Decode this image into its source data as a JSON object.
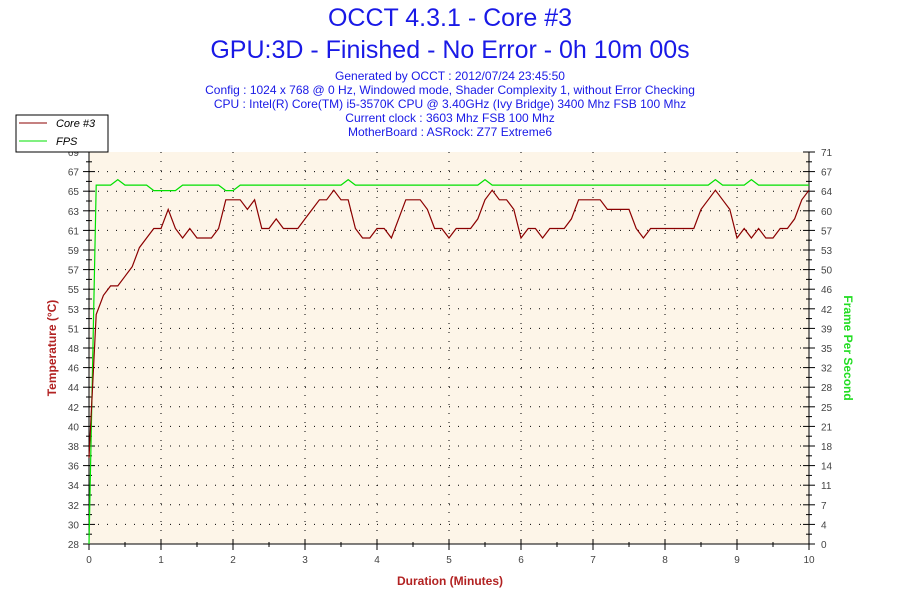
{
  "chart_data": {
    "type": "line",
    "title": "OCCT 4.3.1 - Core #3",
    "subtitle": "GPU:3D - Finished - No Error - 0h 10m 00s",
    "info_lines": [
      "Generated by OCCT : 2012/07/24 23:45:50",
      "Config : 1024 x 768 @ 0 Hz, Windowed mode, Shader Complexity 1, without Error Checking",
      "CPU : Intel(R) Core(TM) i5-3570K CPU @ 3.40GHz (Ivy Bridge) 3400 Mhz FSB 100 Mhz",
      "Current clock : 3603 Mhz FSB 100 Mhz",
      "MotherBoard : ASRock: Z77 Extreme6"
    ],
    "xlabel": "Duration (Minutes)",
    "ylabel": "Temperature (°C)",
    "y2label": "Frame Per Second",
    "xlim": [
      0,
      10
    ],
    "ylim": [
      28,
      69
    ],
    "y2lim": [
      0,
      71
    ],
    "x_ticks": [
      "0",
      "1",
      "2",
      "3",
      "4",
      "5",
      "6",
      "7",
      "8",
      "9",
      "10"
    ],
    "y_ticks": [
      "28",
      "30",
      "32",
      "34",
      "36",
      "38",
      "40",
      "42",
      "44",
      "46",
      "48",
      "51",
      "53",
      "55",
      "57",
      "59",
      "61",
      "63",
      "65",
      "67",
      "69"
    ],
    "y2_ticks": [
      "0",
      "4",
      "7",
      "11",
      "14",
      "18",
      "21",
      "25",
      "28",
      "32",
      "35",
      "39",
      "42",
      "46",
      "50",
      "53",
      "57",
      "60",
      "64",
      "67",
      "71"
    ],
    "grid": true,
    "legend_position": "top-left",
    "colors": {
      "temp": "#8b0000",
      "fps": "#00e000",
      "title": "#1919e6",
      "plot_bg": "#fdf5e8"
    },
    "series": [
      {
        "name": "Core #3",
        "axis": "left",
        "x_step": 0.1,
        "values": [
          37,
          52,
          54,
          55,
          55,
          56,
          57,
          59,
          60,
          61,
          61,
          63,
          61,
          60,
          61,
          60,
          60,
          60,
          61,
          64,
          64,
          64,
          63,
          64,
          61,
          61,
          62,
          61,
          61,
          61,
          62,
          63,
          64,
          64,
          65,
          64,
          64,
          61,
          60,
          60,
          61,
          61,
          60,
          62,
          64,
          64,
          64,
          63,
          61,
          61,
          60,
          61,
          61,
          61,
          62,
          64,
          65,
          64,
          64,
          63,
          60,
          61,
          61,
          60,
          61,
          61,
          61,
          62,
          64,
          64,
          64,
          64,
          63,
          63,
          63,
          63,
          61,
          60,
          61,
          61,
          61,
          61,
          61,
          61,
          61,
          63,
          64,
          65,
          64,
          63,
          60,
          61,
          60,
          61,
          60,
          60,
          61,
          61,
          62,
          64,
          65
        ]
      },
      {
        "name": "FPS",
        "axis": "right",
        "x_step": 0.1,
        "values": [
          0,
          65,
          65,
          65,
          66,
          65,
          65,
          65,
          65,
          64,
          64,
          64,
          64,
          65,
          65,
          65,
          65,
          65,
          65,
          64,
          64,
          65,
          65,
          65,
          65,
          65,
          65,
          65,
          65,
          65,
          65,
          65,
          65,
          65,
          65,
          65,
          66,
          65,
          65,
          65,
          65,
          65,
          65,
          65,
          65,
          65,
          65,
          65,
          65,
          65,
          65,
          65,
          65,
          65,
          65,
          66,
          65,
          65,
          65,
          65,
          65,
          65,
          65,
          65,
          65,
          65,
          65,
          65,
          65,
          65,
          65,
          65,
          65,
          65,
          65,
          65,
          65,
          65,
          65,
          65,
          65,
          65,
          65,
          65,
          65,
          65,
          65,
          66,
          65,
          65,
          65,
          65,
          66,
          65,
          65,
          65,
          65,
          65,
          65,
          65,
          65
        ]
      }
    ]
  }
}
